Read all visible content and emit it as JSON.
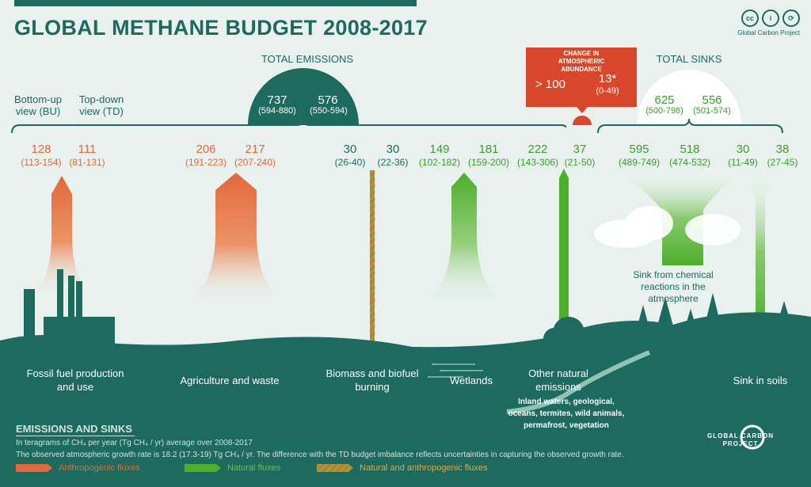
{
  "title": "GLOBAL METHANE BUDGET 2008-2017",
  "credit": "Global Carbon Project",
  "header": {
    "bu_label": "Bottom-up view (BU)",
    "td_label": "Top-down view (TD)",
    "total_emissions_label": "TOTAL EMISSIONS",
    "total_emissions_bu": "737",
    "total_emissions_bu_range": "(594-880)",
    "total_emissions_td": "576",
    "total_emissions_td_range": "(550-594)",
    "total_sinks_label": "TOTAL SINKS",
    "total_sinks_bu": "625",
    "total_sinks_bu_range": "(500-798)",
    "total_sinks_td": "556",
    "total_sinks_td_range": "(501-574)",
    "change_title": "CHANGE IN ATMOSPHERIC ABUNDANCE",
    "change_bu": "> 100",
    "change_td": "13*",
    "change_td_range": "(0-49)"
  },
  "fluxes": [
    {
      "bu": "128",
      "bu_range": "(113-154)",
      "td": "111",
      "td_range": "(81-131)",
      "kind": "anthropogenic",
      "label": "Fossil fuel production and use"
    },
    {
      "bu": "206",
      "bu_range": "(191-223)",
      "td": "217",
      "td_range": "(207-240)",
      "kind": "anthropogenic",
      "label": "Agriculture and waste"
    },
    {
      "bu": "30",
      "bu_range": "(26-40)",
      "td": "30",
      "td_range": "(22-36)",
      "kind": "mixed",
      "label": "Biomass and biofuel burning"
    },
    {
      "bu": "149",
      "bu_range": "(102-182)",
      "td": "181",
      "td_range": "(159-200)",
      "kind": "natural",
      "label": "Wetlands"
    },
    {
      "bu": "222",
      "bu_range": "(143-306)",
      "td": "37",
      "td_range": "(21-50)",
      "kind": "natural",
      "label": "Other natural emissions",
      "sublabel": "Inland waters, geological, oceans, termites, wild animals, permafrost, vegetation"
    },
    {
      "bu": "595",
      "bu_range": "(489-749)",
      "td": "518",
      "td_range": "(474-532)",
      "kind": "natural",
      "label": "Sink from chemical reactions in the atmosphere"
    },
    {
      "bu": "30",
      "bu_range": "(11-49)",
      "td": "38",
      "td_range": "(27-45)",
      "kind": "natural",
      "label": "Sink in soils"
    }
  ],
  "legend": {
    "title": "EMISSIONS AND SINKS",
    "note1": "In teragrams of CH₄ per year (Tg CH₄ / yr) average over 2008-2017",
    "note2": "The observed atmospheric growth rate is 18.2 (17.3-19) Tg CH₄ / yr. The difference with the TD budget imbalance reflects uncertainties in capturing the observed growth rate.",
    "anthropogenic": "Anthropogenic fluxes",
    "natural": "Natural fluxes",
    "mixed": "Natural and anthropogenic fluxes"
  },
  "logo": "GLOBAL CARBON PROJECT",
  "colors": {
    "teal": "#1d6a5e",
    "orange": "#e2693a",
    "green": "#3c9e2e",
    "red": "#d9472b",
    "mixed": "#b8862e"
  }
}
